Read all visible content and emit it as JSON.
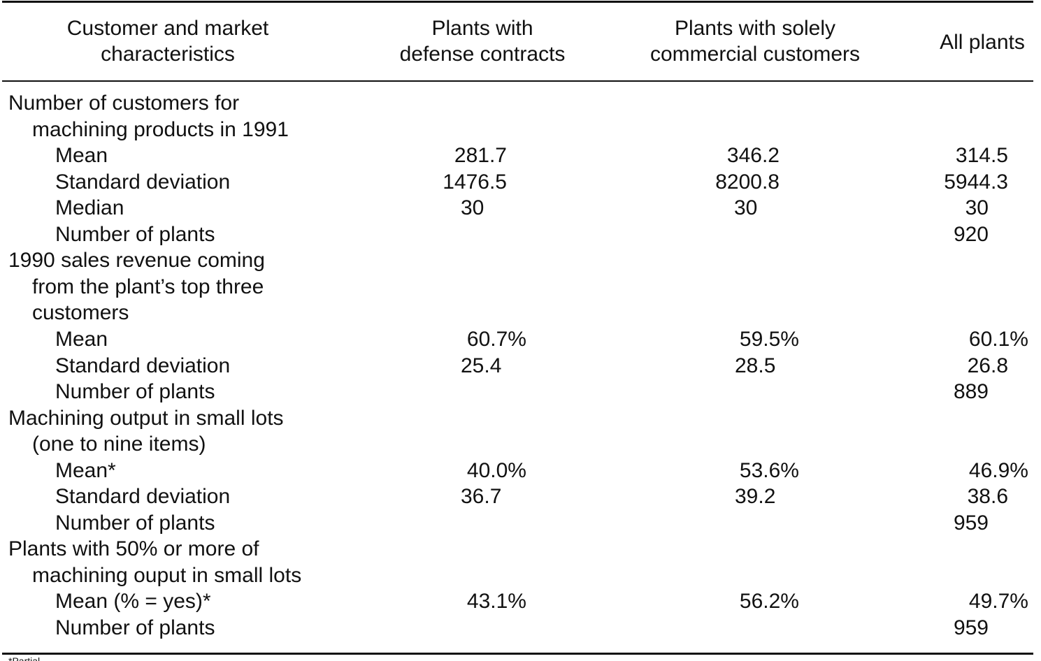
{
  "table": {
    "headers": {
      "col0": [
        "Customer and market",
        "characteristics"
      ],
      "col1": [
        "Plants with",
        "defense contracts"
      ],
      "col2": [
        "Plants with solely",
        "commercial customers"
      ],
      "col3": [
        "All plants"
      ]
    },
    "rows": [
      {
        "label": "Number of customers for",
        "level": 0
      },
      {
        "label": "machining products in 1991",
        "level": 1
      },
      {
        "label": "Mean",
        "level": 2,
        "defense": "281.7",
        "commercial": "346.2",
        "all": "314.5"
      },
      {
        "label": "Standard deviation",
        "level": 2,
        "defense": "1476.5",
        "commercial": "8200.8",
        "all": "5944.3"
      },
      {
        "label": "Median",
        "level": 2,
        "defense": "30",
        "commercial": "30",
        "all": "30"
      },
      {
        "label": "Number of plants",
        "level": 2,
        "all": "920"
      },
      {
        "label": "1990 sales revenue coming",
        "level": 0
      },
      {
        "label": "from the plant’s top three",
        "level": 1
      },
      {
        "label": "customers",
        "level": 1
      },
      {
        "label": "Mean",
        "level": 2,
        "defense": "60.7%",
        "commercial": "59.5%",
        "all": "60.1%"
      },
      {
        "label": "Standard deviation",
        "level": 2,
        "defense": "25.4",
        "commercial": "28.5",
        "all": "26.8"
      },
      {
        "label": "Number of plants",
        "level": 2,
        "all": "889"
      },
      {
        "label": "Machining output in small lots",
        "level": 0
      },
      {
        "label": "(one to nine items)",
        "level": 1
      },
      {
        "label": "Mean*",
        "level": 2,
        "defense": "40.0%",
        "commercial": "53.6%",
        "all": "46.9%"
      },
      {
        "label": "Standard deviation",
        "level": 2,
        "defense": "36.7",
        "commercial": "39.2",
        "all": "38.6"
      },
      {
        "label": "Number of plants",
        "level": 2,
        "all": "959"
      },
      {
        "label": "Plants with 50% or more of",
        "level": 0
      },
      {
        "label": "machining ouput in small lots",
        "level": 1
      },
      {
        "label": "Mean (% = yes)*",
        "level": 2,
        "defense": "43.1%",
        "commercial": "56.2%",
        "all": "49.7%"
      },
      {
        "label": "Number of plants",
        "level": 2,
        "all": "959"
      }
    ]
  },
  "footnote": "*Partial"
}
